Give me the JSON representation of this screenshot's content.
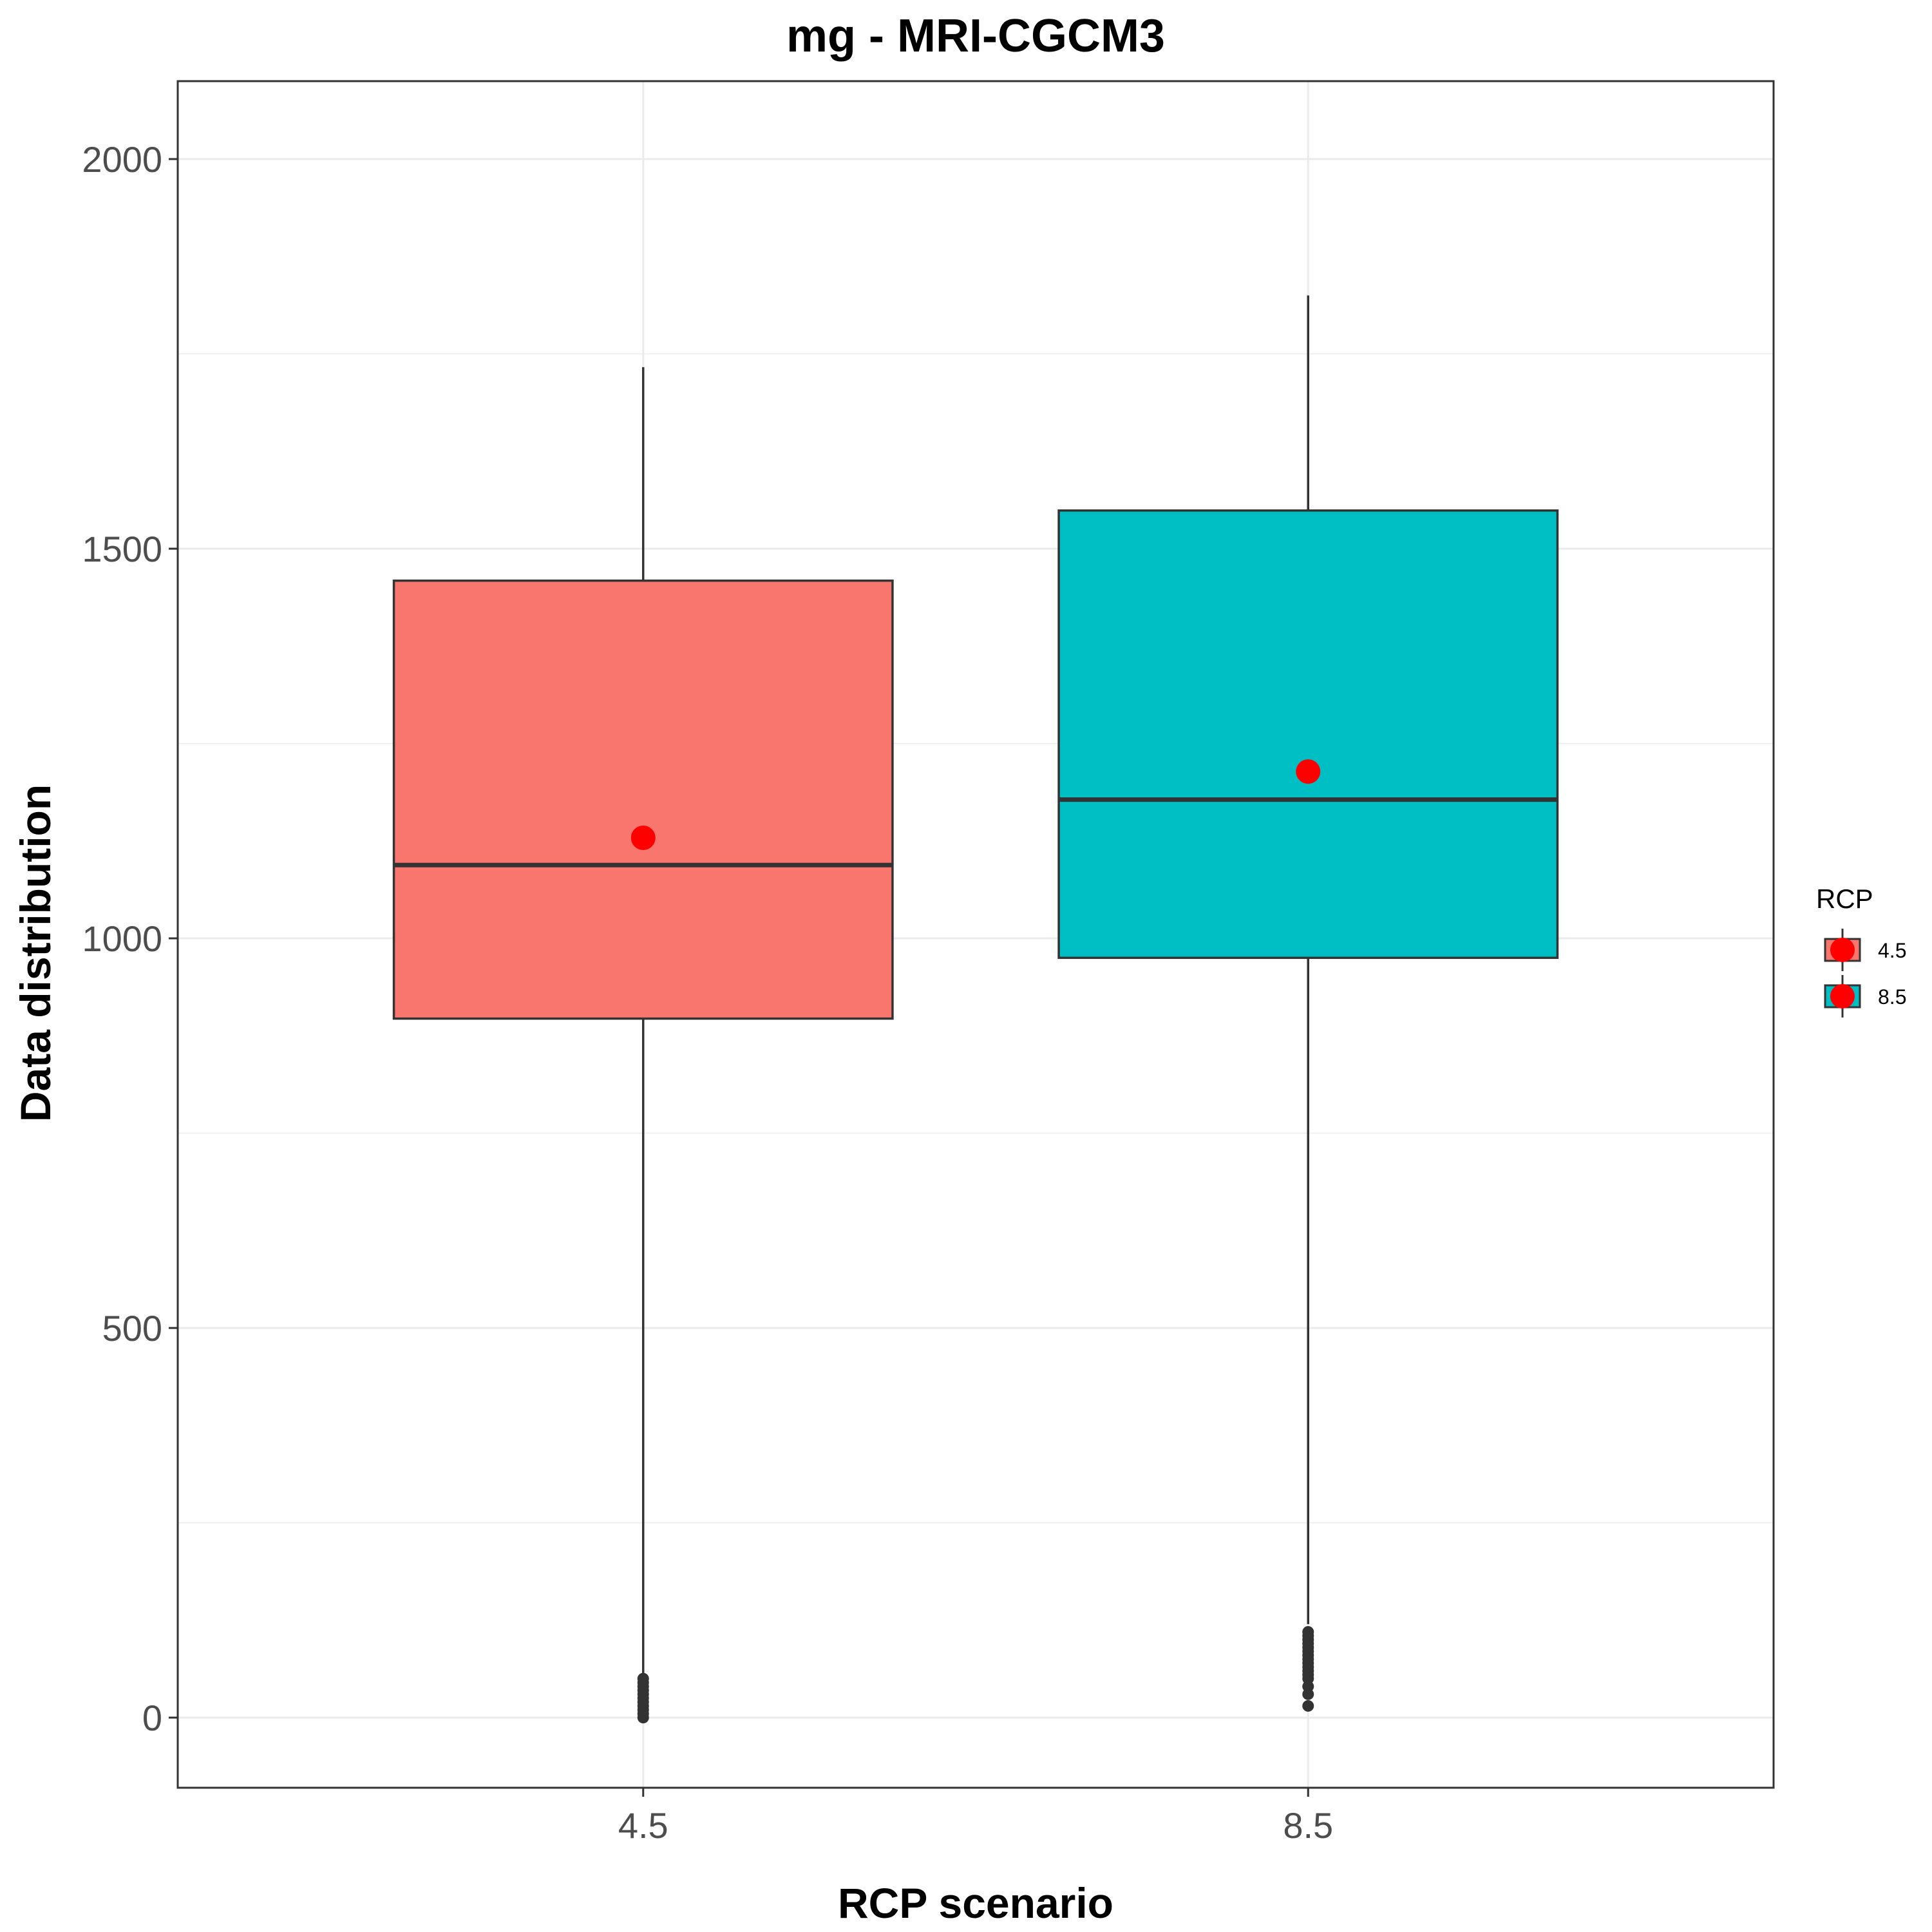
{
  "chart_data": {
    "type": "boxplot",
    "title": "mg - MRI-CGCM3",
    "xlabel": "RCP scenario",
    "ylabel": "Data distribution",
    "ylim": [
      -90,
      2100
    ],
    "y_ticks": [
      0,
      500,
      1000,
      1500,
      2000
    ],
    "y_tick_labels": [
      "0",
      "500",
      "1000",
      "1500",
      "2000"
    ],
    "categories": [
      "4.5",
      "8.5"
    ],
    "grid": true,
    "legend": {
      "title": "RCP",
      "position": "right",
      "labels": [
        "4.5",
        "8.5"
      ]
    },
    "series": [
      {
        "name": "4.5",
        "color": "#F8766D",
        "whisker_low": 0,
        "q1": 897,
        "median": 1094,
        "q3": 1459,
        "whisker_high": 1733,
        "mean": 1129,
        "outliers": [
          0,
          5,
          10,
          15,
          20,
          25,
          30,
          35,
          40,
          45,
          50
        ]
      },
      {
        "name": "8.5",
        "color": "#00BFC4",
        "whisker_low": 120,
        "q1": 975,
        "median": 1178,
        "q3": 1549,
        "whisker_high": 1825,
        "mean": 1214,
        "outliers": [
          15,
          30,
          40,
          50,
          55,
          60,
          65,
          70,
          75,
          80,
          85,
          90,
          95,
          100,
          105,
          110
        ]
      }
    ],
    "mean_marker_color": "#FF0000",
    "colors": {
      "grid": "#EBEBEB",
      "panel_border": "#333333",
      "box_line": "#333333",
      "tick_text": "#4D4D4D"
    }
  }
}
